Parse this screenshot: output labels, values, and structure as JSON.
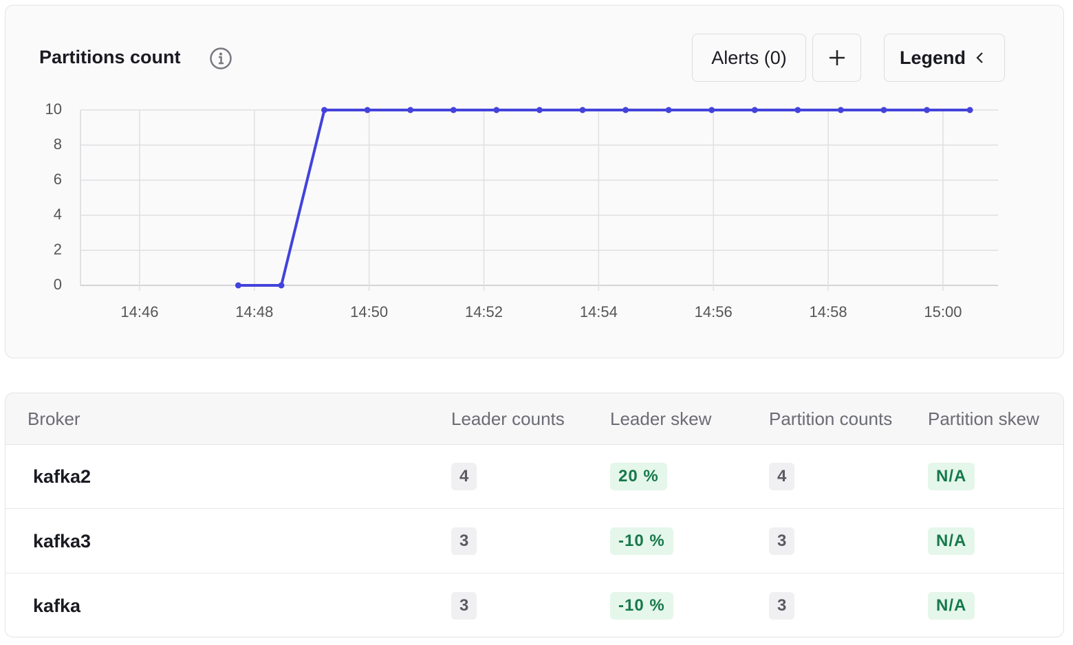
{
  "header": {
    "title": "Partitions count",
    "alerts": "Alerts (0)",
    "legend": "Legend"
  },
  "chart_data": {
    "type": "line",
    "color": "#4343dc",
    "grid": true,
    "x": [
      887.72,
      888.47,
      889.22,
      889.97,
      890.72,
      891.47,
      892.22,
      892.97,
      893.72,
      894.47,
      895.22,
      895.97,
      896.72,
      897.47,
      898.22,
      898.97,
      899.72,
      900.47
    ],
    "values": [
      0,
      0,
      10,
      10,
      10,
      10,
      10,
      10,
      10,
      10,
      10,
      10,
      10,
      10,
      10,
      10,
      10,
      10
    ],
    "xlim": [
      884.97,
      900.96
    ],
    "xticks": [
      {
        "value": 886,
        "label": "14:46"
      },
      {
        "value": 888,
        "label": "14:48"
      },
      {
        "value": 890,
        "label": "14:50"
      },
      {
        "value": 892,
        "label": "14:52"
      },
      {
        "value": 894,
        "label": "14:54"
      },
      {
        "value": 896,
        "label": "14:56"
      },
      {
        "value": 898,
        "label": "14:58"
      },
      {
        "value": 900,
        "label": "15:00"
      }
    ],
    "ylim": [
      0,
      10
    ],
    "yticks": [
      0,
      2,
      4,
      6,
      8,
      10
    ]
  },
  "table": {
    "columns": [
      "Broker",
      "Leader counts",
      "Leader skew",
      "Partition counts",
      "Partition skew"
    ],
    "rows": [
      [
        "kafka2",
        "4",
        "20 %",
        "4",
        "N/A"
      ],
      [
        "kafka3",
        "3",
        "-10 %",
        "3",
        "N/A"
      ],
      [
        "kafka",
        "3",
        "-10 %",
        "3",
        "N/A"
      ]
    ]
  }
}
